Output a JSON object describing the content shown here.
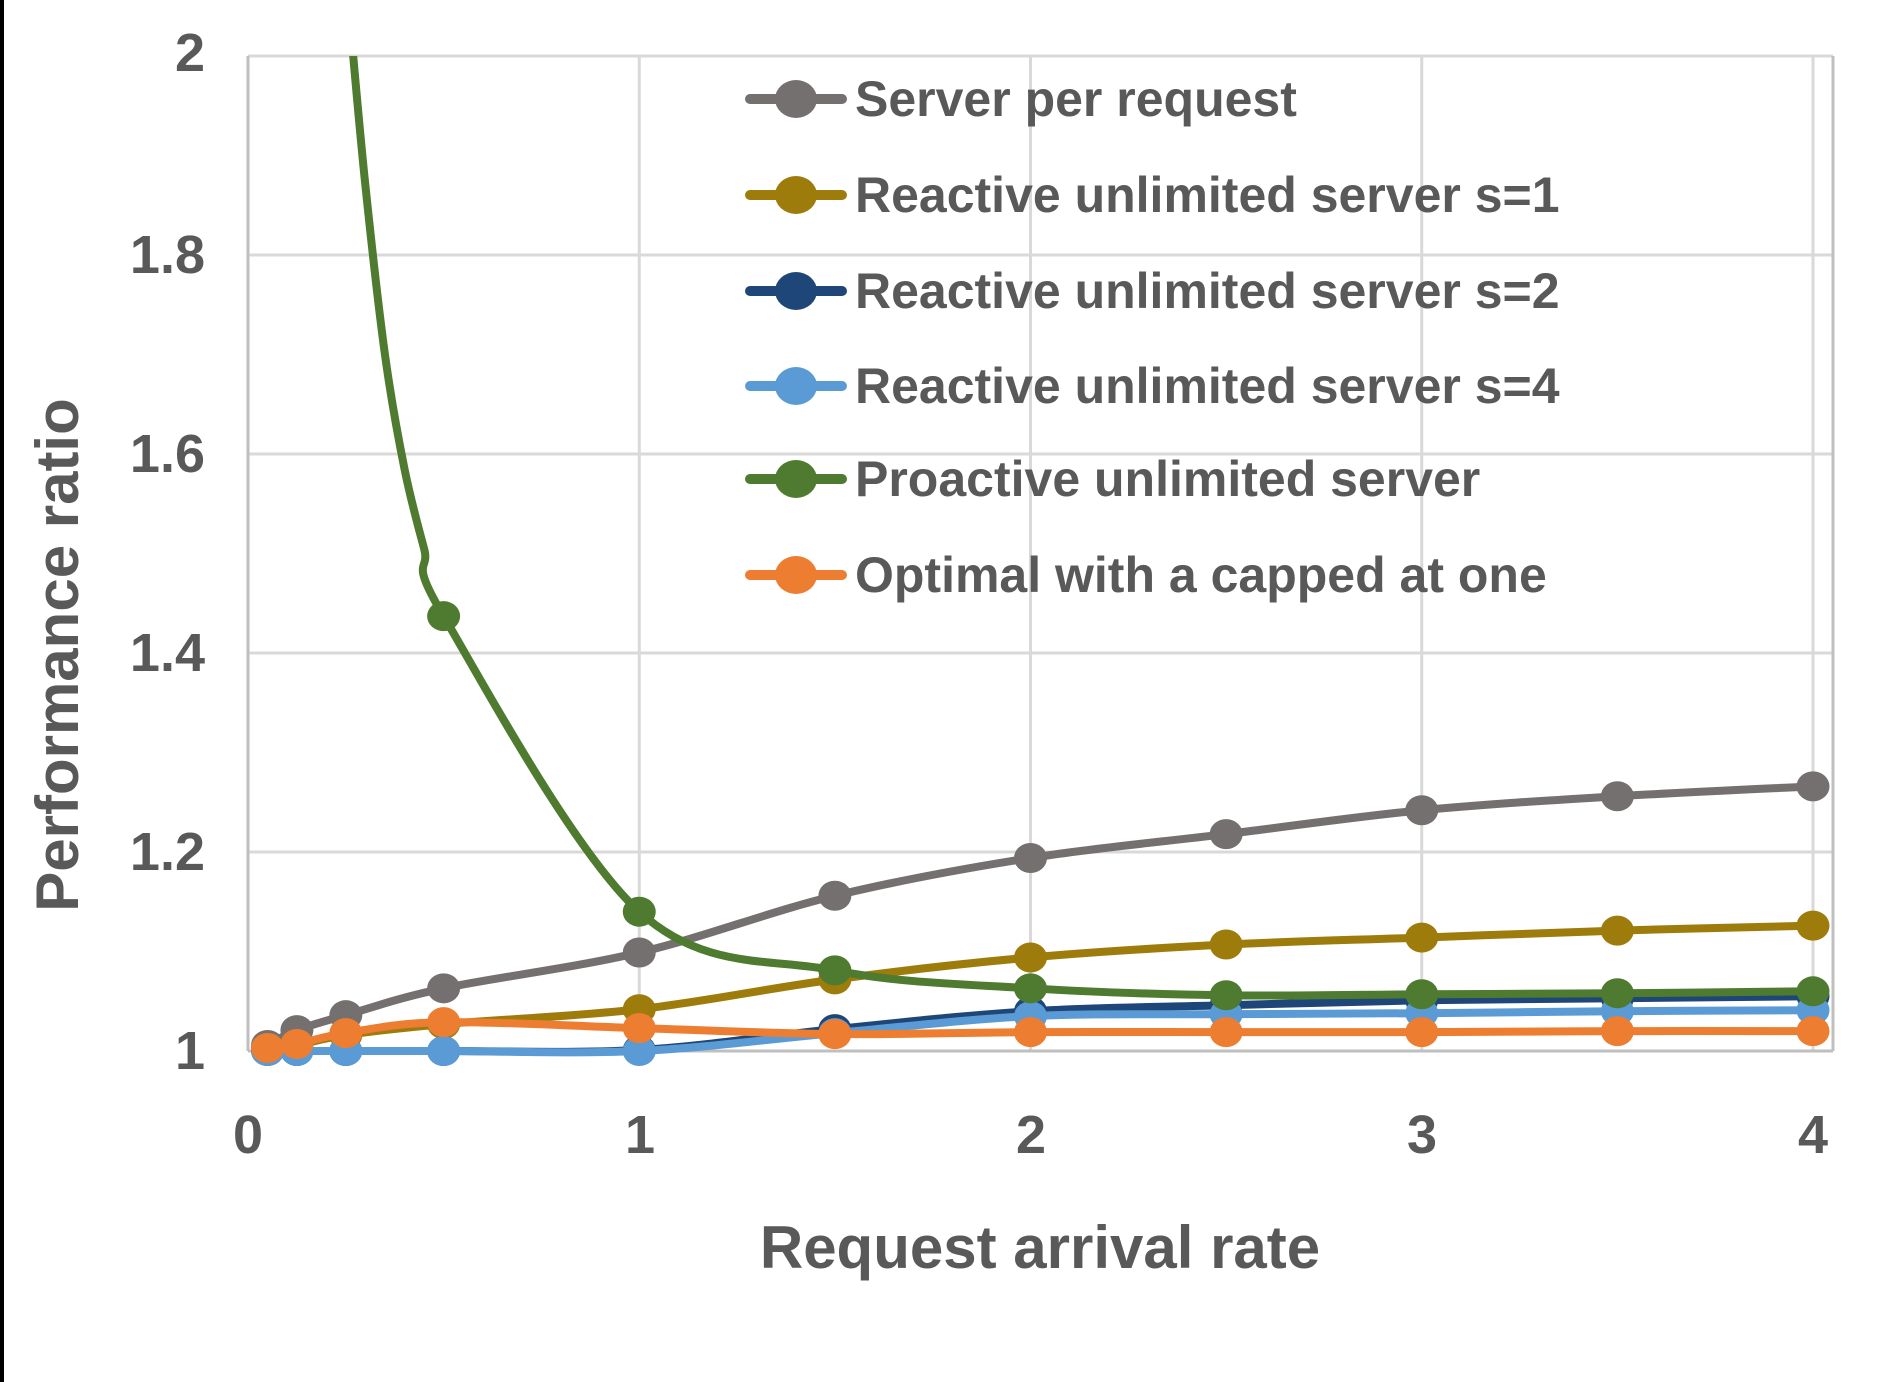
{
  "chart_data": {
    "type": "line",
    "title": "",
    "xlabel": "Request arrival rate",
    "ylabel": "Performance ratio",
    "x": [
      0.05,
      0.125,
      0.25,
      0.5,
      1,
      1.5,
      2,
      2.5,
      3,
      3.5,
      4
    ],
    "xlim": [
      0,
      4.06
    ],
    "ylim": [
      1,
      2
    ],
    "x_ticks": [
      "0",
      "1",
      "2",
      "3",
      "4"
    ],
    "x_tick_values": [
      0,
      1,
      2,
      3,
      4
    ],
    "y_ticks": [
      "1",
      "1.2",
      "1.4",
      "1.6",
      "1.8",
      "2"
    ],
    "y_tick_values": [
      1,
      1.2,
      1.4,
      1.6,
      1.8,
      2
    ],
    "grid": true,
    "legend_position": "inside-top-right",
    "series": [
      {
        "name": "Server per request",
        "color": "#757070",
        "values": [
          1.006,
          1.021,
          1.036,
          1.063,
          1.099,
          1.156,
          1.194,
          1.218,
          1.242,
          1.256,
          1.266
        ]
      },
      {
        "name": "Reactive unlimited server s=1",
        "color": "#9E7C0C",
        "values": [
          1.003,
          1.006,
          1.016,
          1.027,
          1.042,
          1.072,
          1.094,
          1.107,
          1.114,
          1.121,
          1.126
        ]
      },
      {
        "name": "Reactive unlimited server s=2",
        "color": "#1F4679",
        "values": [
          1.0,
          1.0,
          1.0,
          1.0,
          1.001,
          1.022,
          1.04,
          1.046,
          1.051,
          1.053,
          1.055
        ]
      },
      {
        "name": "Reactive unlimited server s=4",
        "color": "#5B9BD5",
        "values": [
          1.0,
          1.0,
          1.0,
          1.0,
          1.0,
          1.018,
          1.035,
          1.037,
          1.038,
          1.04,
          1.041
        ]
      },
      {
        "name": "Proactive unlimited server",
        "color": "#4E7B2F",
        "values": [
          null,
          null,
          null,
          1.437,
          1.14,
          1.081,
          1.063,
          1.056,
          1.057,
          1.058,
          1.06
        ],
        "lead_in": [
          [
            0.262,
            2.03
          ],
          [
            0.3,
            1.87
          ],
          [
            0.35,
            1.7
          ],
          [
            0.4,
            1.585
          ],
          [
            0.45,
            1.505
          ]
        ]
      },
      {
        "name": "Optimal with a capped at one",
        "color": "#ED7D31",
        "values": [
          1.003,
          1.007,
          1.018,
          1.029,
          1.023,
          1.017,
          1.019,
          1.019,
          1.019,
          1.02,
          1.02
        ]
      }
    ],
    "colors": {
      "tick_text": "#595959",
      "gridline": "#D9D9D9",
      "axis_line": "#BFBFBF",
      "background": "#FFFFFF"
    }
  }
}
